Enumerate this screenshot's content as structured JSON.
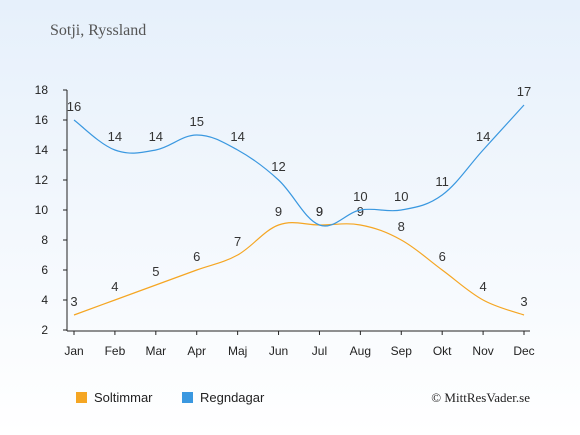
{
  "title": "Sotji, Ryssland",
  "copyright": "© MittResVader.se",
  "colors": {
    "sun": "#f5a623",
    "rain": "#3a98e0"
  },
  "chart_data": {
    "type": "line",
    "categories": [
      "Jan",
      "Feb",
      "Mar",
      "Apr",
      "Maj",
      "Jun",
      "Jul",
      "Aug",
      "Sep",
      "Okt",
      "Nov",
      "Dec"
    ],
    "series": [
      {
        "name": "Soltimmar",
        "values": [
          3,
          4,
          5,
          6,
          7,
          9,
          9,
          9,
          8,
          6,
          4,
          3
        ]
      },
      {
        "name": "Regndagar",
        "values": [
          16,
          14,
          14,
          15,
          14,
          12,
          9,
          10,
          10,
          11,
          14,
          17
        ]
      }
    ],
    "yticks": [
      2,
      4,
      6,
      8,
      10,
      12,
      14,
      16,
      18
    ],
    "ylim": [
      2,
      18
    ],
    "grid": false,
    "legend": "bottom-left"
  }
}
